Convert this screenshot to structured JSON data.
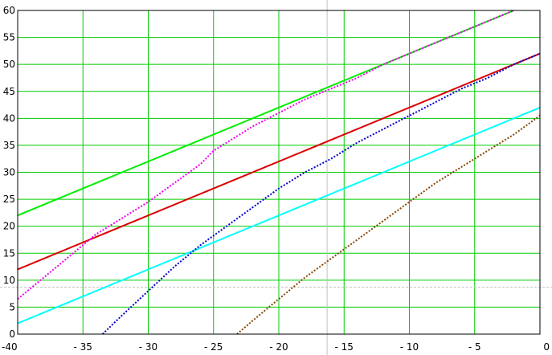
{
  "chart_data": {
    "type": "line",
    "title": "",
    "xlabel": "",
    "ylabel": "",
    "xlim": [
      -40,
      0
    ],
    "ylim": [
      0,
      60
    ],
    "grid": true,
    "grid_color": "#00cc00",
    "x_ticks": [
      -40,
      -35,
      -30,
      -25,
      -20,
      -15,
      -10,
      -5,
      0
    ],
    "x_tick_labels": [
      "-40",
      "- 35",
      "- 30",
      "- 25",
      "- 20",
      "- 15",
      "- 10",
      "- 5",
      "0"
    ],
    "y_ticks": [
      0,
      5,
      10,
      15,
      20,
      25,
      30,
      35,
      40,
      45,
      50,
      55,
      60
    ],
    "y_tick_labels": [
      "0",
      "5",
      "10",
      "15",
      "20",
      "25",
      "30",
      "35",
      "40",
      "45",
      "50",
      "55",
      "60"
    ],
    "crosshair": {
      "x": -16.3,
      "y": 8.7
    },
    "series": [
      {
        "color": "#00ee00",
        "style": "solid",
        "x": [
          -40,
          -2
        ],
        "y": [
          22,
          60
        ]
      },
      {
        "color": "#dd0000",
        "style": "solid",
        "x": [
          -40,
          0
        ],
        "y": [
          12,
          52
        ]
      },
      {
        "color": "#00ffff",
        "style": "solid",
        "x": [
          -40,
          0
        ],
        "y": [
          2,
          42
        ]
      },
      {
        "color": "#ee00ee",
        "style": "dotted",
        "x": [
          -40,
          -38,
          -36,
          -34,
          -32,
          -30,
          -28,
          -26,
          -25,
          -24,
          -22,
          -20,
          -18,
          -16,
          -14,
          -12,
          -10,
          -8,
          -6,
          -4,
          -2
        ],
        "y": [
          6.5,
          10.5,
          14.5,
          18.5,
          21.5,
          24.5,
          28,
          31.5,
          34,
          35.5,
          38.5,
          41,
          43.5,
          45.5,
          47.5,
          50,
          52,
          54,
          56,
          58,
          60
        ]
      },
      {
        "color": "#0000cc",
        "style": "dotted",
        "x": [
          -33.5,
          -32,
          -30,
          -28,
          -26,
          -24,
          -22,
          -20,
          -18,
          -16,
          -14,
          -12,
          -10,
          -8,
          -6,
          -4,
          -2,
          0
        ],
        "y": [
          0,
          3.5,
          8,
          12.5,
          16.5,
          20,
          23.5,
          27,
          30,
          32.5,
          35.5,
          38,
          40.5,
          43,
          45.5,
          47.5,
          50,
          52
        ]
      },
      {
        "color": "#884400",
        "style": "dotted",
        "x": [
          -23.2,
          -22,
          -20,
          -18,
          -16,
          -14,
          -12,
          -10,
          -8,
          -6,
          -4,
          -2,
          0
        ],
        "y": [
          0,
          2.5,
          6.5,
          10.5,
          14,
          17.5,
          21,
          24.5,
          28,
          31,
          34,
          37,
          40.5
        ]
      }
    ]
  }
}
